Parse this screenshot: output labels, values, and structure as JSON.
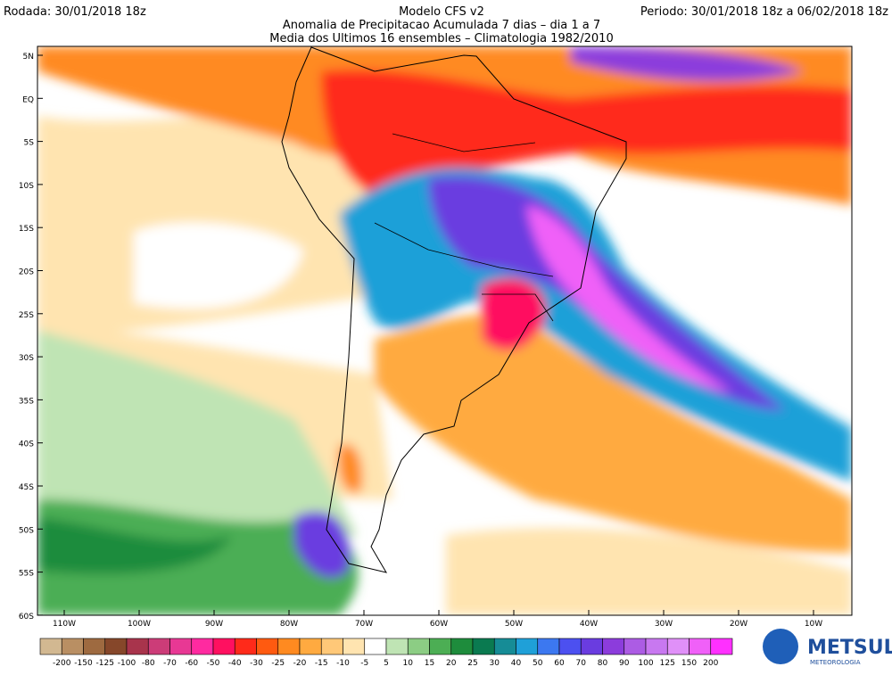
{
  "header": {
    "run": "Rodada: 30/01/2018 18z",
    "model": "Modelo CFS v2",
    "period": "Periodo: 30/01/2018 18z a 06/02/2018 18z",
    "title": "Anomalia de Precipitacao Acumulada 7 dias – dia 1 a 7",
    "subtitle": "Media dos Ultimos 16 ensembles – Climatologia 1982/2010"
  },
  "map": {
    "lat_labels": [
      "5N",
      "EQ",
      "5S",
      "10S",
      "15S",
      "20S",
      "25S",
      "30S",
      "35S",
      "40S",
      "45S",
      "50S",
      "55S",
      "60S"
    ],
    "lon_labels": [
      "110W",
      "100W",
      "90W",
      "80W",
      "70W",
      "60W",
      "50W",
      "40W",
      "30W",
      "20W",
      "10W"
    ]
  },
  "colorbar": {
    "ticks": [
      -200,
      -150,
      -125,
      -100,
      -80,
      -70,
      -60,
      -50,
      -40,
      -30,
      -25,
      -20,
      -15,
      -10,
      -5,
      5,
      10,
      15,
      20,
      25,
      30,
      40,
      50,
      60,
      70,
      80,
      90,
      100,
      125,
      150,
      200
    ],
    "colors": [
      "#d2b891",
      "#b98f63",
      "#9e6a40",
      "#86472a",
      "#a8344c",
      "#cc3c78",
      "#e83894",
      "#ff2aa0",
      "#ff1060",
      "#ff2a1a",
      "#ff5a10",
      "#ff8a20",
      "#ffaa40",
      "#ffc878",
      "#ffe4b0",
      "#ffffff",
      "#bfe4b4",
      "#8ccd84",
      "#4cae54",
      "#1e8c3c",
      "#0a7a50",
      "#168c96",
      "#1fa0d8",
      "#3c78f0",
      "#4c50f0",
      "#6a3ce0",
      "#8c3cdc",
      "#ac5ce4",
      "#c878f0",
      "#e090f8",
      "#f060f8",
      "#ff30ff"
    ]
  },
  "logo": {
    "name": "METSUL",
    "tagline": "METEOROLOGIA"
  }
}
